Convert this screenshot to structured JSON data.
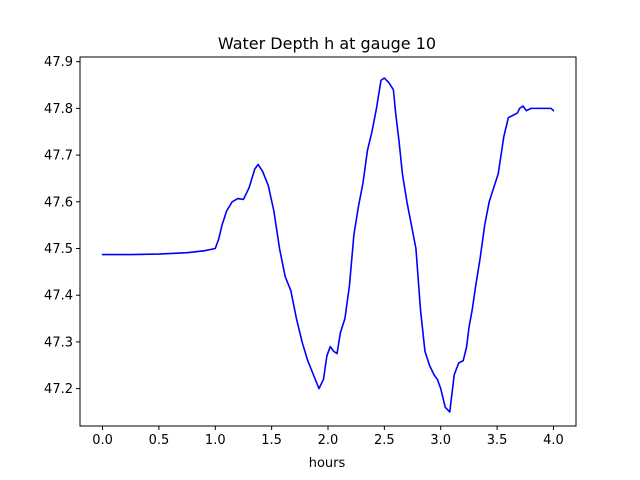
{
  "chart_data": {
    "type": "line",
    "title": "Water Depth h at gauge 10",
    "xlabel": "hours",
    "ylabel": "",
    "xlim": [
      -0.2,
      4.2
    ],
    "ylim": [
      47.12,
      47.91
    ],
    "xticks": [
      0.0,
      0.5,
      1.0,
      1.5,
      2.0,
      2.5,
      3.0,
      3.5,
      4.0
    ],
    "xtick_labels": [
      "0.0",
      "0.5",
      "1.0",
      "1.5",
      "2.0",
      "2.5",
      "3.0",
      "3.5",
      "4.0"
    ],
    "yticks": [
      47.2,
      47.3,
      47.4,
      47.5,
      47.6,
      47.7,
      47.8,
      47.9
    ],
    "ytick_labels": [
      "47.2",
      "47.3",
      "47.4",
      "47.5",
      "47.6",
      "47.7",
      "47.8",
      "47.9"
    ],
    "grid": false,
    "series": [
      {
        "color": "#0000ff",
        "x": [
          0.0,
          0.25,
          0.5,
          0.75,
          0.9,
          1.0,
          1.03,
          1.06,
          1.1,
          1.15,
          1.2,
          1.25,
          1.3,
          1.35,
          1.38,
          1.42,
          1.47,
          1.52,
          1.57,
          1.62,
          1.67,
          1.72,
          1.77,
          1.82,
          1.87,
          1.92,
          1.96,
          1.99,
          2.02,
          2.05,
          2.08,
          2.11,
          2.15,
          2.19,
          2.23,
          2.27,
          2.31,
          2.35,
          2.39,
          2.43,
          2.47,
          2.5,
          2.54,
          2.58,
          2.6,
          2.63,
          2.66,
          2.7,
          2.74,
          2.78,
          2.82,
          2.86,
          2.9,
          2.94,
          2.97,
          3.0,
          3.04,
          3.08,
          3.12,
          3.16,
          3.2,
          3.23,
          3.25,
          3.28,
          3.31,
          3.35,
          3.39,
          3.43,
          3.47,
          3.51,
          3.56,
          3.6,
          3.64,
          3.68,
          3.7,
          3.73,
          3.76,
          3.8,
          3.85,
          3.9,
          3.95,
          3.98,
          4.0
        ],
        "y": [
          47.487,
          47.487,
          47.488,
          47.491,
          47.495,
          47.5,
          47.52,
          47.55,
          47.58,
          47.6,
          47.607,
          47.605,
          47.63,
          47.67,
          47.68,
          47.665,
          47.635,
          47.58,
          47.5,
          47.44,
          47.41,
          47.35,
          47.3,
          47.26,
          47.23,
          47.2,
          47.22,
          47.27,
          47.29,
          47.28,
          47.275,
          47.32,
          47.35,
          47.42,
          47.53,
          47.59,
          47.64,
          47.71,
          47.75,
          47.8,
          47.86,
          47.865,
          47.855,
          47.84,
          47.79,
          47.73,
          47.66,
          47.6,
          47.55,
          47.5,
          47.37,
          47.28,
          47.25,
          47.23,
          47.22,
          47.2,
          47.16,
          47.15,
          47.23,
          47.255,
          47.26,
          47.29,
          47.33,
          47.37,
          47.42,
          47.48,
          47.55,
          47.6,
          47.63,
          47.66,
          47.74,
          47.78,
          47.785,
          47.79,
          47.8,
          47.805,
          47.795,
          47.8,
          47.8,
          47.8,
          47.8,
          47.8,
          47.795
        ]
      }
    ]
  }
}
